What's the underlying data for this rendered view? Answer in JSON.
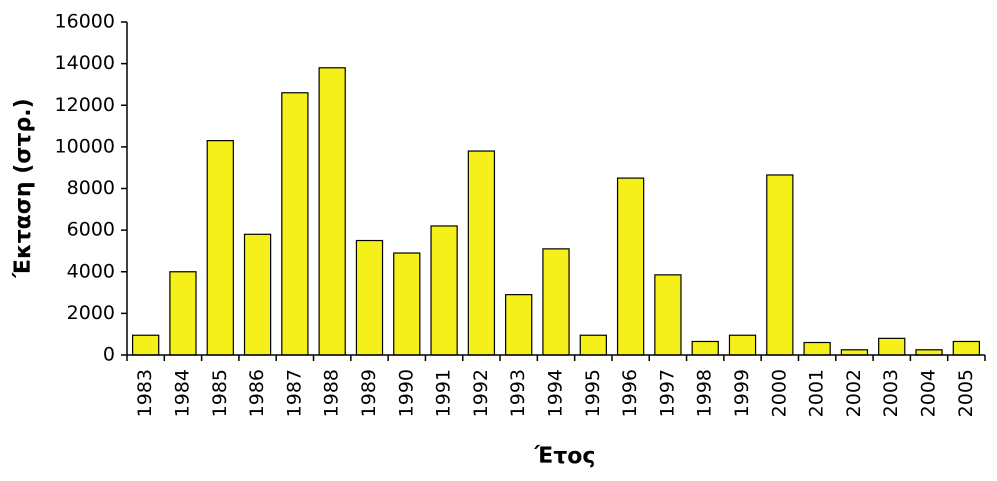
{
  "chart_data": {
    "type": "bar",
    "x_label": "Έτος",
    "y_label": "Έκταση (στρ.)",
    "categories": [
      "1983",
      "1984",
      "1985",
      "1986",
      "1987",
      "1988",
      "1989",
      "1990",
      "1991",
      "1992",
      "1993",
      "1994",
      "1995",
      "1996",
      "1997",
      "1998",
      "1999",
      "2000",
      "2001",
      "2002",
      "2003",
      "2004",
      "2005"
    ],
    "values": [
      950,
      4000,
      10300,
      5800,
      12600,
      13800,
      5500,
      4900,
      6200,
      9800,
      2900,
      5100,
      950,
      8500,
      3850,
      650,
      950,
      8650,
      600,
      250,
      800,
      250,
      650
    ],
    "color": "#f5ef1a",
    "ylim": [
      0,
      16000
    ],
    "yticks": [
      0,
      2000,
      4000,
      6000,
      8000,
      10000,
      12000,
      14000,
      16000
    ],
    "grid": false
  }
}
